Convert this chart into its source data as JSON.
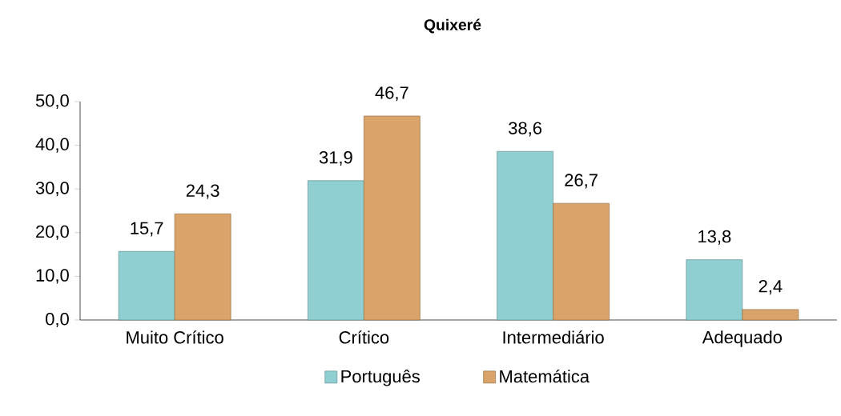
{
  "chart_data": {
    "type": "bar",
    "title": "Quixeré",
    "categories": [
      "Muito Crítico",
      "Crítico",
      "Intermediário",
      "Adequado"
    ],
    "series": [
      {
        "name": "Português",
        "color": "#8fcfd2",
        "values": [
          15.7,
          31.9,
          38.6,
          13.8
        ],
        "value_labels": [
          "15,7",
          "31,9",
          "38,6",
          "13,8"
        ]
      },
      {
        "name": "Matemática",
        "color": "#d9a36a",
        "values": [
          24.3,
          46.7,
          26.7,
          2.4
        ],
        "value_labels": [
          "24,3",
          "46,7",
          "26,7",
          "2,4"
        ]
      }
    ],
    "ylim": [
      0,
      50
    ],
    "yticks": [
      {
        "value": 0,
        "label": "0,0"
      },
      {
        "value": 10,
        "label": "10,0"
      },
      {
        "value": 20,
        "label": "20,0"
      },
      {
        "value": 30,
        "label": "30,0"
      },
      {
        "value": 40,
        "label": "40,0"
      },
      {
        "value": 50,
        "label": "50,0"
      }
    ],
    "legend": "bottom",
    "grid": false
  }
}
